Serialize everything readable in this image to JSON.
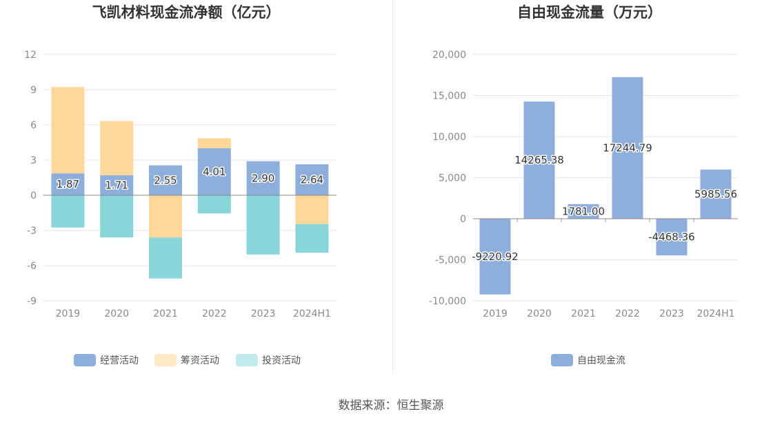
{
  "source": "数据来源：恒生聚源",
  "chart_data": [
    {
      "type": "bar",
      "stacked": true,
      "title": "飞凯材料现金流净额（亿元）",
      "categories": [
        "2019",
        "2020",
        "2021",
        "2022",
        "2023",
        "2024H1"
      ],
      "ylim": [
        -9,
        12
      ],
      "yticks": [
        12,
        9,
        6,
        3,
        0,
        -3,
        -6,
        -9
      ],
      "grid": true,
      "legend_position": "bottom",
      "series": [
        {
          "name": "经营活动",
          "color": "#8eaedc",
          "values": [
            1.87,
            1.71,
            2.55,
            4.01,
            2.9,
            2.64
          ],
          "labels": [
            "1.87",
            "1.71",
            "2.55",
            "4.01",
            "2.90",
            "2.64"
          ]
        },
        {
          "name": "筹资活动",
          "color": "#ffd899",
          "values": [
            7.35,
            4.62,
            -3.6,
            0.85,
            0.0,
            -2.45
          ]
        },
        {
          "name": "投资活动",
          "color": "#88d6da",
          "values": [
            -2.75,
            -3.6,
            -3.5,
            -1.55,
            -5.05,
            -2.45
          ]
        }
      ]
    },
    {
      "type": "bar",
      "title": "自由现金流量（万元）",
      "categories": [
        "2019",
        "2020",
        "2021",
        "2022",
        "2023",
        "2024H1"
      ],
      "ylim": [
        -10000,
        20000
      ],
      "yticks": [
        "20,000",
        "15,000",
        "10,000",
        "5,000",
        "0",
        "-5,000",
        "-10,000"
      ],
      "grid": true,
      "legend_position": "bottom",
      "series": [
        {
          "name": "自由现金流",
          "color": "#8eaedc",
          "values": [
            -9220.92,
            14265.38,
            1781.0,
            17244.79,
            -4468.36,
            5985.56
          ],
          "labels": [
            "-9220.92",
            "14265.38",
            "1781.00",
            "17244.79",
            "-4468.36",
            "5985.56"
          ]
        }
      ]
    }
  ]
}
